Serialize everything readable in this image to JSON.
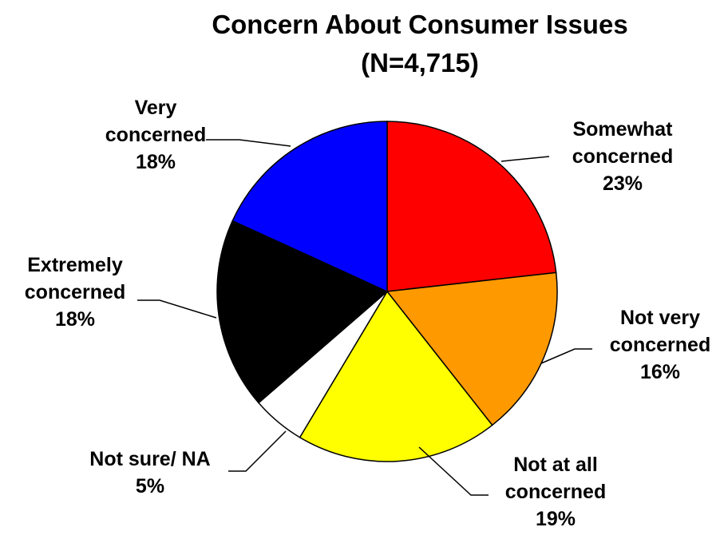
{
  "chart_data": {
    "type": "pie",
    "title": "Concern About Consumer Issues",
    "subtitle": "(N=4,715)",
    "series": [
      {
        "name": "",
        "values": [
          23,
          16,
          19,
          5,
          18,
          18
        ]
      }
    ],
    "categories": [
      "Somewhat concerned",
      "Not very concerned",
      "Not at all concerned",
      "Not sure/ NA",
      "Extremely concerned",
      "Very concerned"
    ],
    "slices": [
      {
        "id": "somewhat",
        "label_lines": [
          "Somewhat",
          "concerned"
        ],
        "value": 23,
        "value_label": "23%",
        "color": "#ff0000"
      },
      {
        "id": "not-very",
        "label_lines": [
          "Not very",
          "concerned"
        ],
        "value": 16,
        "value_label": "16%",
        "color": "#ff9900"
      },
      {
        "id": "not-at-all",
        "label_lines": [
          "Not at all",
          "concerned"
        ],
        "value": 19,
        "value_label": "19%",
        "color": "#ffff00"
      },
      {
        "id": "not-sure",
        "label_lines": [
          "Not sure/ NA"
        ],
        "value": 5,
        "value_label": "5%",
        "color": "#ffffff"
      },
      {
        "id": "extremely",
        "label_lines": [
          "Extremely",
          "concerned"
        ],
        "value": 18,
        "value_label": "18%",
        "color": "#000000"
      },
      {
        "id": "very",
        "label_lines": [
          "Very",
          "concerned"
        ],
        "value": 18,
        "value_label": "18%",
        "color": "#0000ff"
      }
    ],
    "start_angle_deg": 0,
    "direction": "clockwise",
    "legend": "none",
    "grid": false
  }
}
